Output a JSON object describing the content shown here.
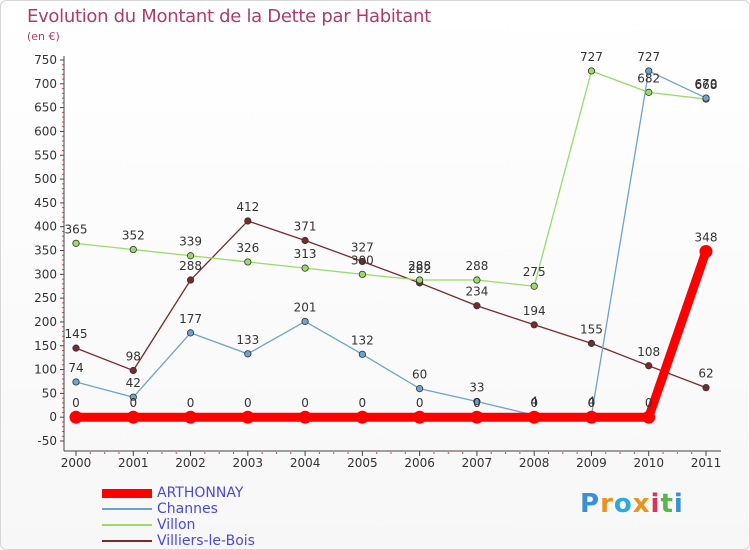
{
  "title": "Evolution du Montant de la Dette par Habitant",
  "subtitle": "(en €)",
  "logo": {
    "text": "Proxiti",
    "colors": [
      "#3a8fd6",
      "#e8931e",
      "#2fa8df",
      "#e8931e",
      "#d9335a",
      "#5cb44c",
      "#3a8fd6"
    ]
  },
  "chart_data": {
    "type": "line",
    "title": "Evolution du Montant de la Dette par Habitant",
    "subtitle": "(en €)",
    "x": [
      "2000",
      "2001",
      "2002",
      "2003",
      "2004",
      "2005",
      "2006",
      "2007",
      "2008",
      "2009",
      "2010",
      "2011"
    ],
    "ylim": [
      -50,
      750
    ],
    "yticks": [
      750,
      700,
      650,
      600,
      550,
      500,
      450,
      400,
      350,
      300,
      250,
      200,
      150,
      100,
      50,
      0,
      -50
    ],
    "grid": false,
    "legend_position": "bottom-left",
    "series": [
      {
        "name": "ARTHONNAY",
        "color": "#ff0000",
        "width": "thick",
        "values": [
          0,
          0,
          0,
          0,
          0,
          0,
          0,
          0,
          0,
          0,
          0,
          348
        ],
        "labels": [
          "0",
          "0",
          "0",
          "0",
          "0",
          "0",
          "0",
          "0",
          "0",
          "0",
          "0",
          "348"
        ]
      },
      {
        "name": "Channes",
        "color": "#6fa3cf",
        "width": "thin",
        "values": [
          74,
          42,
          177,
          133,
          201,
          132,
          60,
          33,
          4,
          4,
          727,
          670
        ],
        "labels": [
          "74",
          "42",
          "177",
          "133",
          "201",
          "132",
          "60",
          "33",
          "4",
          "4",
          "727",
          "670"
        ]
      },
      {
        "name": "Villon",
        "color": "#99dd66",
        "width": "thin",
        "values": [
          365,
          352,
          339,
          326,
          313,
          300,
          288,
          288,
          275,
          727,
          682,
          668
        ],
        "labels": [
          "365",
          "352",
          "339",
          "326",
          "313",
          "300",
          "288",
          "288",
          "275",
          "727",
          "682",
          "668"
        ]
      },
      {
        "name": "Villiers-le-Bois",
        "color": "#7a2a2a",
        "width": "thin",
        "values": [
          145,
          98,
          288,
          412,
          371,
          327,
          282,
          234,
          194,
          155,
          108,
          62
        ],
        "labels": [
          "145",
          "98",
          "288",
          "412",
          "371",
          "327",
          "282",
          "234",
          "194",
          "155",
          "108",
          "62"
        ]
      }
    ]
  }
}
